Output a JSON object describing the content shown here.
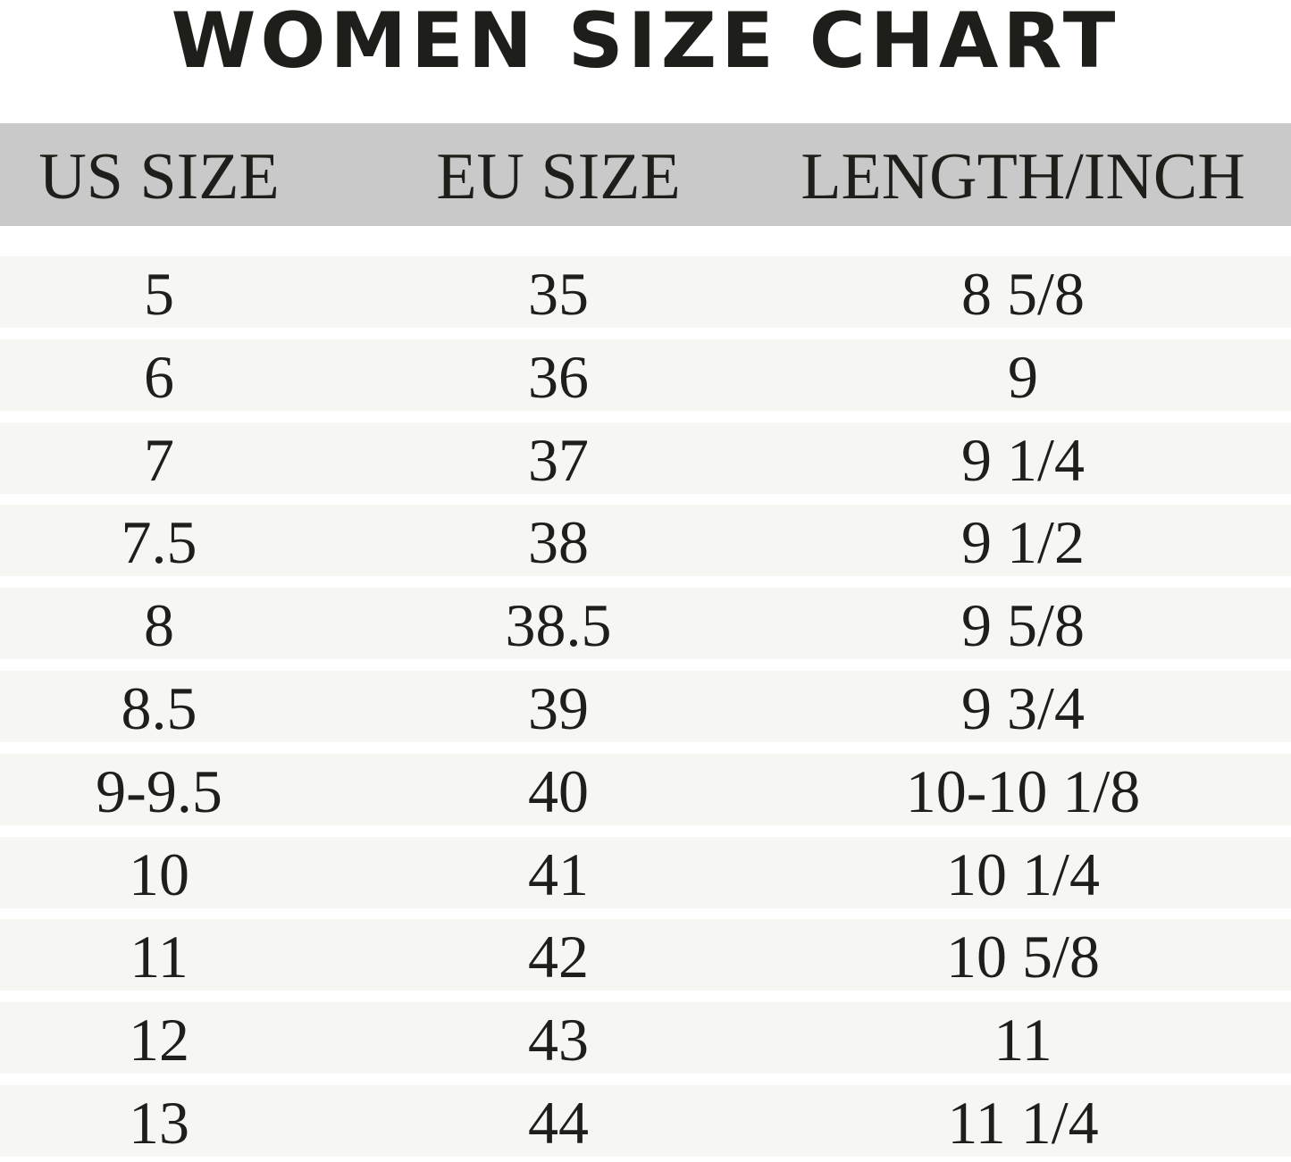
{
  "header": {
    "title": "WOMEN SIZE CHART"
  },
  "table": {
    "columns": [
      "US SIZE",
      "EU SIZE",
      "LENGTH/INCH"
    ],
    "rows": [
      [
        "5",
        "35",
        "8 5/8"
      ],
      [
        "6",
        "36",
        "9"
      ],
      [
        "7",
        "37",
        "9 1/4"
      ],
      [
        "7.5",
        "38",
        "9 1/2"
      ],
      [
        "8",
        "38.5",
        "9 5/8"
      ],
      [
        "8.5",
        "39",
        "9 3/4"
      ],
      [
        "9-9.5",
        "40",
        "10-10 1/8"
      ],
      [
        "10",
        "41",
        "10 1/4"
      ],
      [
        "11",
        "42",
        "10 5/8"
      ],
      [
        "12",
        "43",
        "11"
      ],
      [
        "13",
        "44",
        "11 1/4"
      ]
    ]
  }
}
